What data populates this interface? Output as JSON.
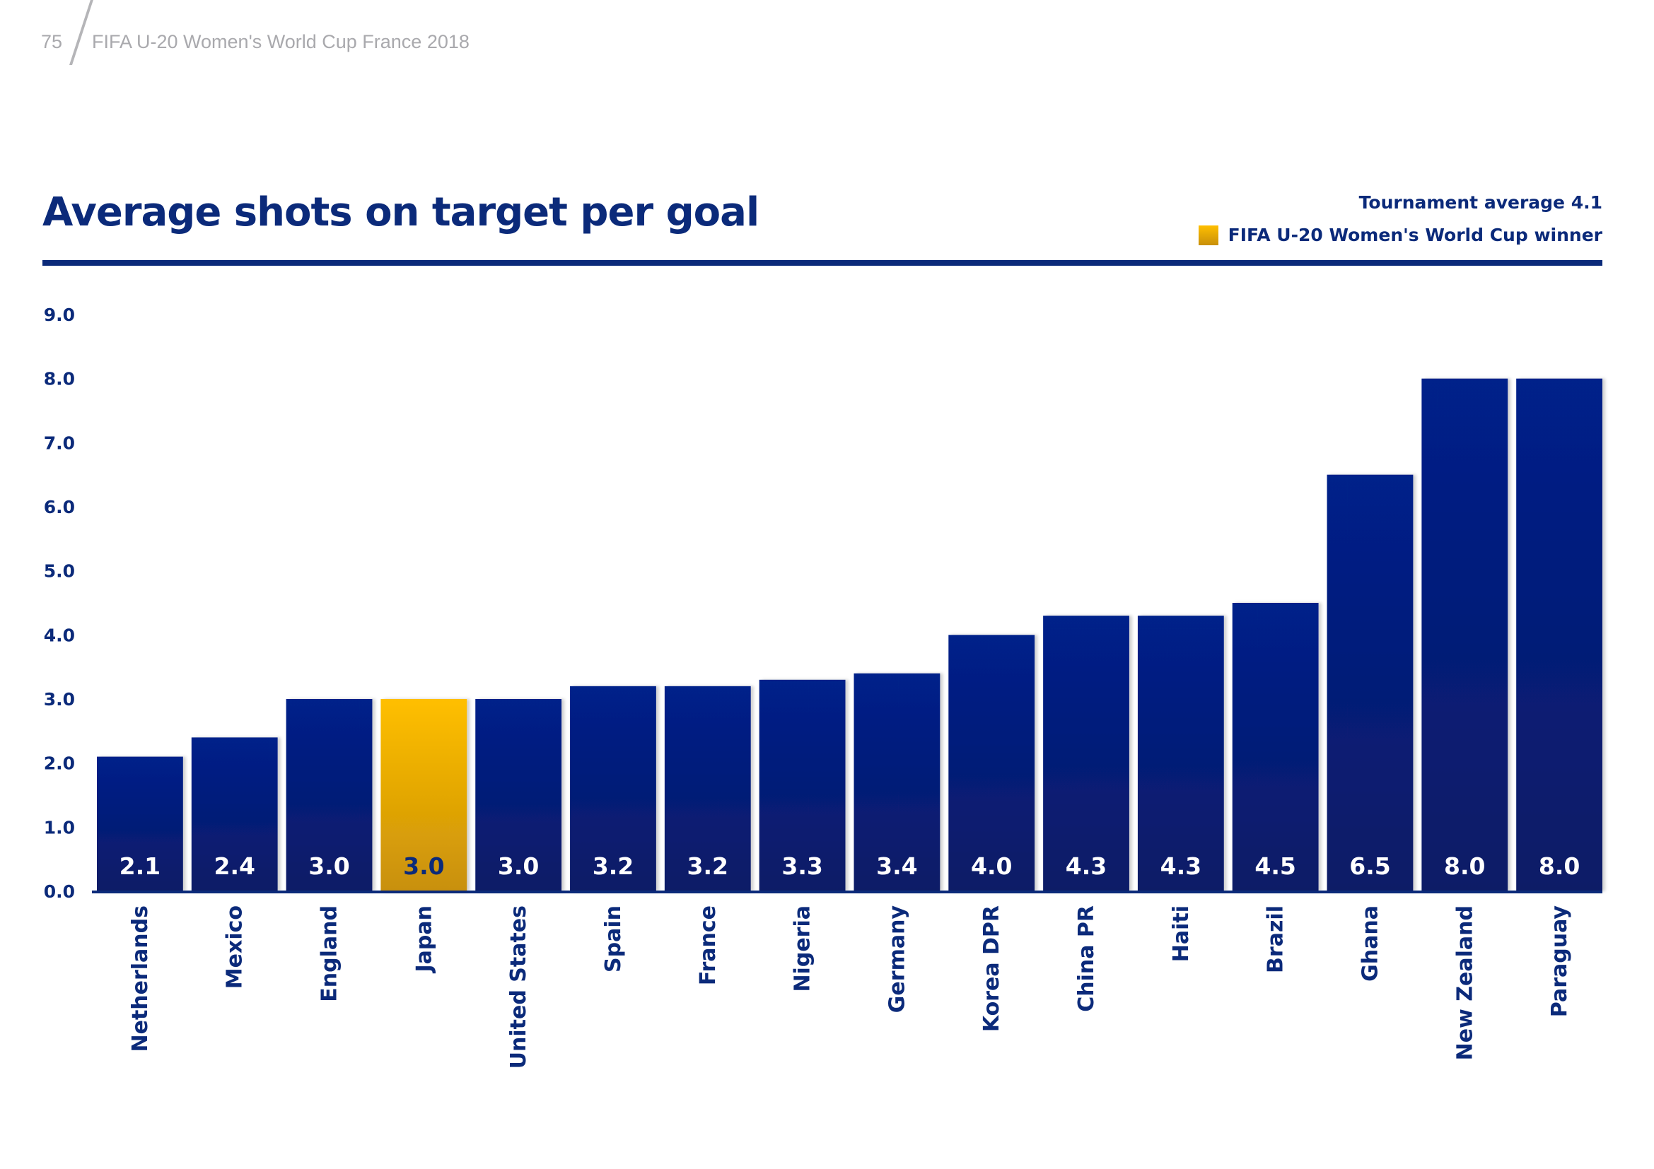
{
  "header": {
    "page_number": "75",
    "publication": "FIFA U-20 Women's World Cup France 2018"
  },
  "colors": {
    "primary": "#0b2a7a",
    "bar_top": "#00208a",
    "bar_bottom": "#0b1a66",
    "winner_top": "#ffbf00",
    "winner_bottom": "#c8900a",
    "header_gray": "#a9a9ad"
  },
  "legend": {
    "average_note": "Tournament average 4.1",
    "winner_label": "FIFA U-20 Women's World Cup winner"
  },
  "chart_data": {
    "type": "bar",
    "title": "Average shots on target per goal",
    "xlabel": "",
    "ylabel": "",
    "ylim": [
      0,
      9
    ],
    "yticks": [
      "0.0",
      "1.0",
      "2.0",
      "3.0",
      "4.0",
      "5.0",
      "6.0",
      "7.0",
      "8.0",
      "9.0"
    ],
    "grid": false,
    "legend_position": "top-right",
    "tournament_average": 4.1,
    "winner": "Japan",
    "categories": [
      "Netherlands",
      "Mexico",
      "England",
      "Japan",
      "United States",
      "Spain",
      "France",
      "Nigeria",
      "Germany",
      "Korea DPR",
      "China PR",
      "Haiti",
      "Brazil",
      "Ghana",
      "New Zealand",
      "Paraguay"
    ],
    "values": [
      2.1,
      2.4,
      3.0,
      3.0,
      3.0,
      3.2,
      3.2,
      3.3,
      3.4,
      4.0,
      4.3,
      4.3,
      4.5,
      6.5,
      8.0,
      8.0
    ],
    "value_labels": [
      "2.1",
      "2.4",
      "3.0",
      "3.0",
      "3.0",
      "3.2",
      "3.2",
      "3.3",
      "3.4",
      "4.0",
      "4.3",
      "4.3",
      "4.5",
      "6.5",
      "8.0",
      "8.0"
    ]
  }
}
